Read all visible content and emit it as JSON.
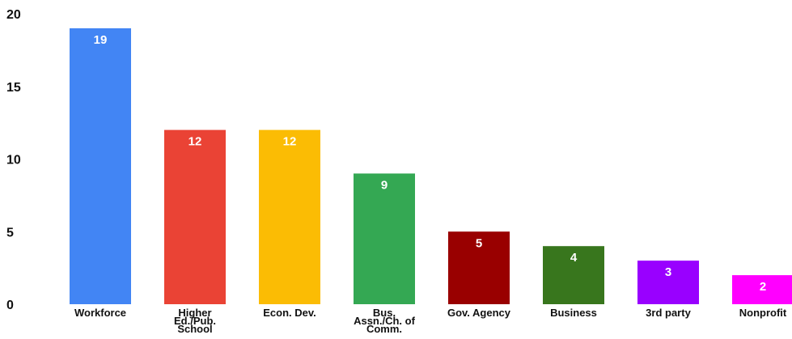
{
  "chart_data": {
    "type": "bar",
    "title": "",
    "xlabel": "",
    "ylabel": "",
    "ylim": [
      0,
      20
    ],
    "yticks": [
      0,
      5,
      10,
      15,
      20
    ],
    "grid": false,
    "legend": "none",
    "categories": [
      "Workforce",
      "Higher Ed./Pub. School",
      "Econ. Dev.",
      "Bus. Assn./Ch. of Comm.",
      "Gov. Agency",
      "Business",
      "3rd party",
      "Nonprofit"
    ],
    "category_lines": [
      [
        "Workforce"
      ],
      [
        "Higher",
        "Ed./Pub.",
        "School"
      ],
      [
        "Econ. Dev."
      ],
      [
        "Bus.",
        "Assn./Ch. of",
        "Comm."
      ],
      [
        "Gov. Agency"
      ],
      [
        "Business"
      ],
      [
        "3rd party"
      ],
      [
        "Nonprofit"
      ]
    ],
    "values": [
      19,
      12,
      12,
      9,
      5,
      4,
      3,
      2
    ],
    "colors": [
      "#4285f4",
      "#ea4335",
      "#fbbc04",
      "#34a853",
      "#990000",
      "#38761d",
      "#9900ff",
      "#ff00ff"
    ],
    "data_labels": [
      "19",
      "12",
      "12",
      "9",
      "5",
      "4",
      "3",
      "2"
    ]
  }
}
